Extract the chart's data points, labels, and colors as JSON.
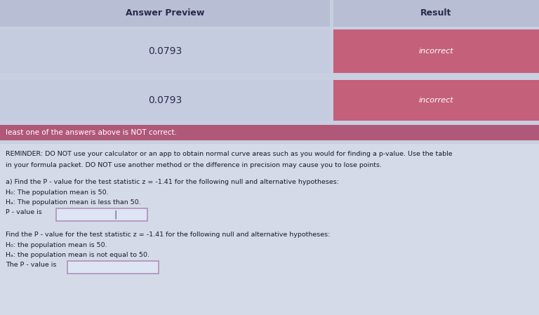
{
  "table_header_left": "Answer Preview",
  "table_header_right": "Result",
  "row1_left": "0.0793",
  "row1_right": "incorrect",
  "row2_left": "0.0793",
  "row2_right": "incorrect",
  "warning_text": "least one of the answers above is NOT correct.",
  "reminder_line1": "REMINDER: DO NOT use your calculator or an app to obtain normal curve areas such as you would for finding a p-value. Use the table",
  "reminder_line2": "in your formula packet. DO NOT use another method or the difference in precision may cause you to lose points.",
  "part_a_line1": "a) Find the P - value for the test statistic z = -1.41 for the following null and alternative hypotheses:",
  "part_a_h0": "H₀: The population mean is 50.",
  "part_a_ha": "Hₐ: The population mean is less than 50.",
  "part_a_label": "P - value is",
  "part_b_line1": "Find the P - value for the test statistic z = -1.41 for the following null and alternative hypotheses:",
  "part_b_h0": "H₀: the population mean is 50.",
  "part_b_ha": "Hₐ: the population mean is not equal to 50.",
  "part_b_label": "The P - value is",
  "header_bg": "#b8bfd4",
  "header_text_color": "#2a2a4a",
  "row_left_bg": "#c5cce0",
  "row_right_bg": "#c4607a",
  "row_right_text": "#ffffff",
  "warning_bg": "#b05878",
  "warning_text_color": "#ffffff",
  "body_bg": "#c8cfe0",
  "body_inner_bg": "#d4dae8",
  "body_text_color": "#1a1a2e",
  "input_box_bg": "#dde4f4",
  "input_box_border": "#b090b8"
}
